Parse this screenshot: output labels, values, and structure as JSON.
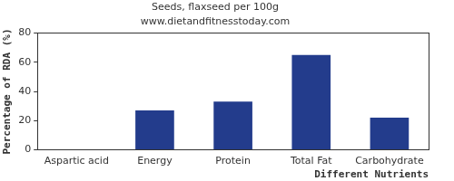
{
  "chart_data": {
    "type": "bar",
    "title": "Seeds, flaxseed per 100g",
    "subtitle": "www.dietandfitnesstoday.com",
    "x_label": "Different Nutrients",
    "y_label": "Percentage of RDA (%)",
    "categories": [
      "Aspartic acid",
      "Energy",
      "Protein",
      "Total Fat",
      "Carbohydrate"
    ],
    "values": [
      0,
      27,
      33,
      65,
      22
    ],
    "color": "#233c8c",
    "ylim": [
      0,
      80
    ],
    "yticks": [
      0,
      20,
      40,
      60,
      80
    ],
    "grid": false
  }
}
